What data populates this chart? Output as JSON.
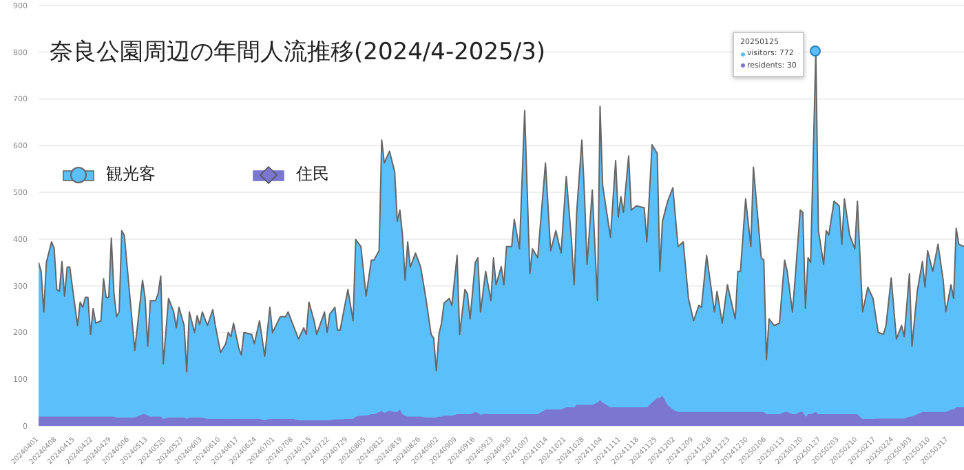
{
  "chart_data": {
    "type": "area",
    "stacked": true,
    "title": "奈良公園周辺の年間人流推移(2024/4-2025/3)",
    "legend": "top left",
    "grid": "y",
    "x": [
      "2024-04-01",
      "2024-04-02",
      "2024-04-03",
      "2024-04-04",
      "2024-04-06",
      "2024-04-07",
      "2024-04-08",
      "2024-04-09",
      "2024-04-10",
      "2024-04-11",
      "2024-04-12",
      "2024-04-13",
      "2024-04-16",
      "2024-04-17",
      "2024-04-18",
      "2024-04-19",
      "2024-04-20",
      "2024-04-21",
      "2024-04-22",
      "2024-04-23",
      "2024-04-25",
      "2024-04-26",
      "2024-04-27",
      "2024-04-28",
      "2024-04-29",
      "2024-04-30",
      "2024-05-01",
      "2024-05-02",
      "2024-05-03",
      "2024-05-04",
      "2024-05-08",
      "2024-05-11",
      "2024-05-12",
      "2024-05-13",
      "2024-05-14",
      "2024-05-16",
      "2024-05-17",
      "2024-05-18",
      "2024-05-19",
      "2024-05-21",
      "2024-05-23",
      "2024-05-24",
      "2024-05-25",
      "2024-05-27",
      "2024-05-28",
      "2024-05-29",
      "2024-05-31",
      "2024-06-01",
      "2024-06-02",
      "2024-06-03",
      "2024-06-05",
      "2024-06-07",
      "2024-06-08",
      "2024-06-10",
      "2024-06-12",
      "2024-06-13",
      "2024-06-14",
      "2024-06-15",
      "2024-06-17",
      "2024-06-18",
      "2024-06-19",
      "2024-06-22",
      "2024-06-23",
      "2024-06-25",
      "2024-06-27",
      "2024-06-29",
      "2024-06-30",
      "2024-07-03",
      "2024-07-05",
      "2024-07-06",
      "2024-07-08",
      "2024-07-10",
      "2024-07-12",
      "2024-07-13",
      "2024-07-14",
      "2024-07-16",
      "2024-07-17",
      "2024-07-20",
      "2024-07-21",
      "2024-07-22",
      "2024-07-24",
      "2024-07-25",
      "2024-07-26",
      "2024-07-29",
      "2024-07-31",
      "2024-08-01",
      "2024-08-03",
      "2024-08-05",
      "2024-08-07",
      "2024-08-08",
      "2024-08-10",
      "2024-08-11",
      "2024-08-12",
      "2024-08-14",
      "2024-08-16",
      "2024-08-17",
      "2024-08-18",
      "2024-08-19",
      "2024-08-20",
      "2024-08-21",
      "2024-08-22",
      "2024-08-24",
      "2024-08-26",
      "2024-08-28",
      "2024-08-30",
      "2024-08-31",
      "2024-09-01",
      "2024-09-02",
      "2024-09-03",
      "2024-09-04",
      "2024-09-06",
      "2024-09-07",
      "2024-09-09",
      "2024-09-10",
      "2024-09-12",
      "2024-09-13",
      "2024-09-14",
      "2024-09-16",
      "2024-09-17",
      "2024-09-18",
      "2024-09-20",
      "2024-09-22",
      "2024-09-23",
      "2024-09-24",
      "2024-09-26",
      "2024-09-27",
      "2024-09-28",
      "2024-09-30",
      "2024-10-01",
      "2024-10-03",
      "2024-10-05",
      "2024-10-07",
      "2024-10-08",
      "2024-10-10",
      "2024-10-13",
      "2024-10-15",
      "2024-10-17",
      "2024-10-19",
      "2024-10-21",
      "2024-10-23",
      "2024-10-24",
      "2024-10-25",
      "2024-10-27",
      "2024-10-28",
      "2024-10-29",
      "2024-10-31",
      "2024-11-02",
      "2024-11-03",
      "2024-11-04",
      "2024-11-07",
      "2024-11-09",
      "2024-11-10",
      "2024-11-11",
      "2024-11-12",
      "2024-11-14",
      "2024-11-15",
      "2024-11-17",
      "2024-11-20",
      "2024-11-21",
      "2024-11-23",
      "2024-11-25",
      "2024-11-26",
      "2024-11-27",
      "2024-11-29",
      "2024-12-01",
      "2024-12-03",
      "2024-12-05",
      "2024-12-07",
      "2024-12-09",
      "2024-12-11",
      "2024-12-12",
      "2024-12-14",
      "2024-12-17",
      "2024-12-18",
      "2024-12-20",
      "2024-12-22",
      "2024-12-25",
      "2024-12-26",
      "2024-12-27",
      "2024-12-29",
      "2024-12-31",
      "2025-01-01",
      "2025-01-04",
      "2025-01-05",
      "2025-01-06",
      "2025-01-07",
      "2025-01-09",
      "2025-01-11",
      "2025-01-13",
      "2025-01-14",
      "2025-01-16",
      "2025-01-17",
      "2025-01-19",
      "2025-01-20",
      "2025-01-21",
      "2025-01-22",
      "2025-01-23",
      "2025-01-25",
      "2025-01-26",
      "2025-01-28",
      "2025-01-29",
      "2025-01-30",
      "2025-02-01",
      "2025-02-03",
      "2025-02-04",
      "2025-02-05",
      "2025-02-07",
      "2025-02-09",
      "2025-02-10",
      "2025-02-12",
      "2025-02-14",
      "2025-02-16",
      "2025-02-18",
      "2025-02-20",
      "2025-02-21",
      "2025-02-23",
      "2025-02-25",
      "2025-02-27",
      "2025-02-28",
      "2025-03-02",
      "2025-03-03",
      "2025-03-05",
      "2025-03-07",
      "2025-03-08",
      "2025-03-09",
      "2025-03-11",
      "2025-03-13",
      "2025-03-15",
      "2025-03-16",
      "2025-03-18",
      "2025-03-19",
      "2025-03-20",
      "2025-03-21",
      "2025-03-23"
    ],
    "series": [
      {
        "name": "住民",
        "color": "#7b77d1",
        "values": [
          20,
          20,
          20,
          20,
          20,
          20,
          20,
          20,
          20,
          20,
          20,
          20,
          20,
          20,
          20,
          20,
          20,
          20,
          20,
          20,
          20,
          20,
          20,
          20,
          20,
          20,
          18,
          18,
          18,
          18,
          18,
          25,
          25,
          22,
          20,
          20,
          20,
          20,
          15,
          18,
          18,
          18,
          18,
          18,
          15,
          18,
          18,
          18,
          18,
          18,
          15,
          15,
          15,
          15,
          15,
          15,
          15,
          15,
          15,
          15,
          15,
          15,
          15,
          15,
          12,
          15,
          15,
          15,
          15,
          15,
          15,
          12,
          12,
          12,
          12,
          12,
          12,
          12,
          12,
          12,
          14,
          14,
          14,
          15,
          15,
          20,
          22,
          22,
          25,
          25,
          30,
          32,
          28,
          33,
          30,
          30,
          35,
          25,
          22,
          20,
          20,
          20,
          20,
          18,
          18,
          18,
          18,
          20,
          20,
          22,
          22,
          22,
          25,
          25,
          25,
          25,
          25,
          30,
          28,
          24,
          26,
          25,
          25,
          25,
          25,
          25,
          25,
          25,
          25,
          25,
          25,
          25,
          25,
          25,
          35,
          35,
          35,
          35,
          40,
          40,
          40,
          45,
          45,
          45,
          45,
          45,
          50,
          55,
          50,
          40,
          40,
          40,
          40,
          40,
          40,
          40,
          40,
          40,
          40,
          50,
          60,
          60,
          65,
          45,
          35,
          30,
          30,
          30,
          30,
          30,
          30,
          30,
          30,
          30,
          30,
          30,
          30,
          30,
          30,
          30,
          30,
          30,
          30,
          30,
          25,
          25,
          25,
          25,
          30,
          30,
          25,
          25,
          30,
          30,
          20,
          25,
          25,
          30,
          25,
          25,
          25,
          25,
          25,
          25,
          25,
          25,
          25,
          25,
          25,
          15,
          15,
          15,
          16,
          16,
          16,
          16,
          16,
          16,
          16,
          20,
          20,
          25,
          30,
          30,
          30,
          30,
          30,
          30,
          30,
          35,
          35,
          40,
          40,
          40
        ]
      },
      {
        "name": "観光客",
        "color": "#5bbff9",
        "values": [
          330,
          311,
          224,
          330,
          374,
          360,
          272,
          268,
          332,
          258,
          320,
          320,
          195,
          245,
          234,
          255,
          255,
          176,
          231,
          200,
          205,
          295,
          255,
          255,
          382,
          265,
          216,
          226,
          400,
          390,
          144,
          287,
          248,
          149,
          248,
          248,
          263,
          301,
          118,
          255,
          226,
          192,
          236,
          197,
          101,
          226,
          182,
          218,
          199,
          226,
          200,
          234,
          200,
          142,
          161,
          185,
          176,
          205,
          152,
          137,
          185,
          181,
          161,
          210,
          137,
          239,
          185,
          219,
          219,
          229,
          200,
          174,
          198,
          184,
          253,
          213,
          184,
          232,
          188,
          227,
          240,
          191,
          191,
          277,
          210,
          379,
          362,
          256,
          330,
          330,
          345,
          580,
          535,
          555,
          514,
          408,
          427,
          384,
          290,
          374,
          320,
          350,
          320,
          255,
          178,
          170,
          100,
          176,
          200,
          241,
          251,
          236,
          340,
          171,
          267,
          258,
          204,
          320,
          332,
          220,
          305,
          243,
          335,
          277,
          316,
          277,
          359,
          359,
          417,
          354,
          650,
          301,
          354,
          335,
          528,
          340,
          383,
          335,
          494,
          359,
          262,
          412,
          567,
          451,
          301,
          460,
          218,
          629,
          465,
          364,
          528,
          407,
          451,
          417,
          538,
          422,
          431,
          427,
          354,
          552,
          523,
          271,
          373,
          436,
          475,
          354,
          364,
          243,
          195,
          228,
          224,
          335,
          214,
          258,
          190,
          272,
          199,
          301,
          301,
          456,
          354,
          524,
          330,
          325,
          117,
          204,
          190,
          195,
          325,
          301,
          219,
          287,
          432,
          427,
          232,
          335,
          325,
          772,
          393,
          321,
          393,
          384,
          456,
          446,
          364,
          461,
          384,
          354,
          456,
          229,
          282,
          258,
          184,
          180,
          199,
          301,
          170,
          199,
          175,
          306,
          151,
          263,
          322,
          267,
          345,
          301,
          359,
          282,
          214,
          267,
          238,
          383,
          349,
          344
        ]
      }
    ],
    "ylim": [
      0,
      900
    ],
    "yticks": [
      0,
      100,
      200,
      300,
      400,
      500,
      600,
      700,
      800,
      900
    ],
    "xlim": [
      "2024-04-01",
      "2025-03-23"
    ],
    "xticks": [
      {
        "value": "2024-04-01",
        "label": "20240401"
      },
      {
        "value": "2024-04-08",
        "label": "20240408"
      },
      {
        "value": "2024-04-15",
        "label": "20240415"
      },
      {
        "value": "2024-04-22",
        "label": "20240422"
      },
      {
        "value": "2024-04-29",
        "label": "20240429"
      },
      {
        "value": "2024-05-06",
        "label": "20240506"
      },
      {
        "value": "2024-05-13",
        "label": "20240513"
      },
      {
        "value": "2024-05-20",
        "label": "20240520"
      },
      {
        "value": "2024-05-27",
        "label": "20240527"
      },
      {
        "value": "2024-06-03",
        "label": "20240603"
      },
      {
        "value": "2024-06-10",
        "label": "20240610"
      },
      {
        "value": "2024-06-17",
        "label": "20240617"
      },
      {
        "value": "2024-06-24",
        "label": "20240624"
      },
      {
        "value": "2024-07-01",
        "label": "20240701"
      },
      {
        "value": "2024-07-08",
        "label": "20240708"
      },
      {
        "value": "2024-07-15",
        "label": "20240715"
      },
      {
        "value": "2024-07-22",
        "label": "20240722"
      },
      {
        "value": "2024-07-29",
        "label": "20240729"
      },
      {
        "value": "2024-08-05",
        "label": "20240805"
      },
      {
        "value": "2024-08-12",
        "label": "20240812"
      },
      {
        "value": "2024-08-19",
        "label": "20240819"
      },
      {
        "value": "2024-08-26",
        "label": "20240826"
      },
      {
        "value": "2024-09-02",
        "label": "20240902"
      },
      {
        "value": "2024-09-09",
        "label": "20240909"
      },
      {
        "value": "2024-09-16",
        "label": "20240916"
      },
      {
        "value": "2024-09-23",
        "label": "20240923"
      },
      {
        "value": "2024-09-30",
        "label": "20240930"
      },
      {
        "value": "2024-10-07",
        "label": "20241007"
      },
      {
        "value": "2024-10-14",
        "label": "20241014"
      },
      {
        "value": "2024-10-21",
        "label": "20241021"
      },
      {
        "value": "2024-10-28",
        "label": "20241028"
      },
      {
        "value": "2024-11-04",
        "label": "20241104"
      },
      {
        "value": "2024-11-11",
        "label": "20241111"
      },
      {
        "value": "2024-11-18",
        "label": "20241118"
      },
      {
        "value": "2024-11-25",
        "label": "20241125"
      },
      {
        "value": "2024-12-02",
        "label": "20241202"
      },
      {
        "value": "2024-12-09",
        "label": "20241209"
      },
      {
        "value": "2024-12-16",
        "label": "20241216"
      },
      {
        "value": "2024-12-23",
        "label": "20241223"
      },
      {
        "value": "2024-12-30",
        "label": "20241230"
      },
      {
        "value": "2025-01-06",
        "label": "20250106"
      },
      {
        "value": "2025-01-13",
        "label": "20250113"
      },
      {
        "value": "2025-01-20",
        "label": "20250120"
      },
      {
        "value": "2025-01-27",
        "label": "20250127"
      },
      {
        "value": "2025-02-03",
        "label": "20250203"
      },
      {
        "value": "2025-02-10",
        "label": "20250210"
      },
      {
        "value": "2025-02-17",
        "label": "20250217"
      },
      {
        "value": "2025-02-24",
        "label": "20250224"
      },
      {
        "value": "2025-03-03",
        "label": "20250303"
      },
      {
        "value": "2025-03-10",
        "label": "20250310"
      },
      {
        "value": "2025-03-17",
        "label": "20250317"
      }
    ],
    "annotations": [
      {
        "text": "20250125\nvisitors: 772\nresidents: 30",
        "x": "2025-01-25",
        "y": 802
      }
    ]
  }
}
